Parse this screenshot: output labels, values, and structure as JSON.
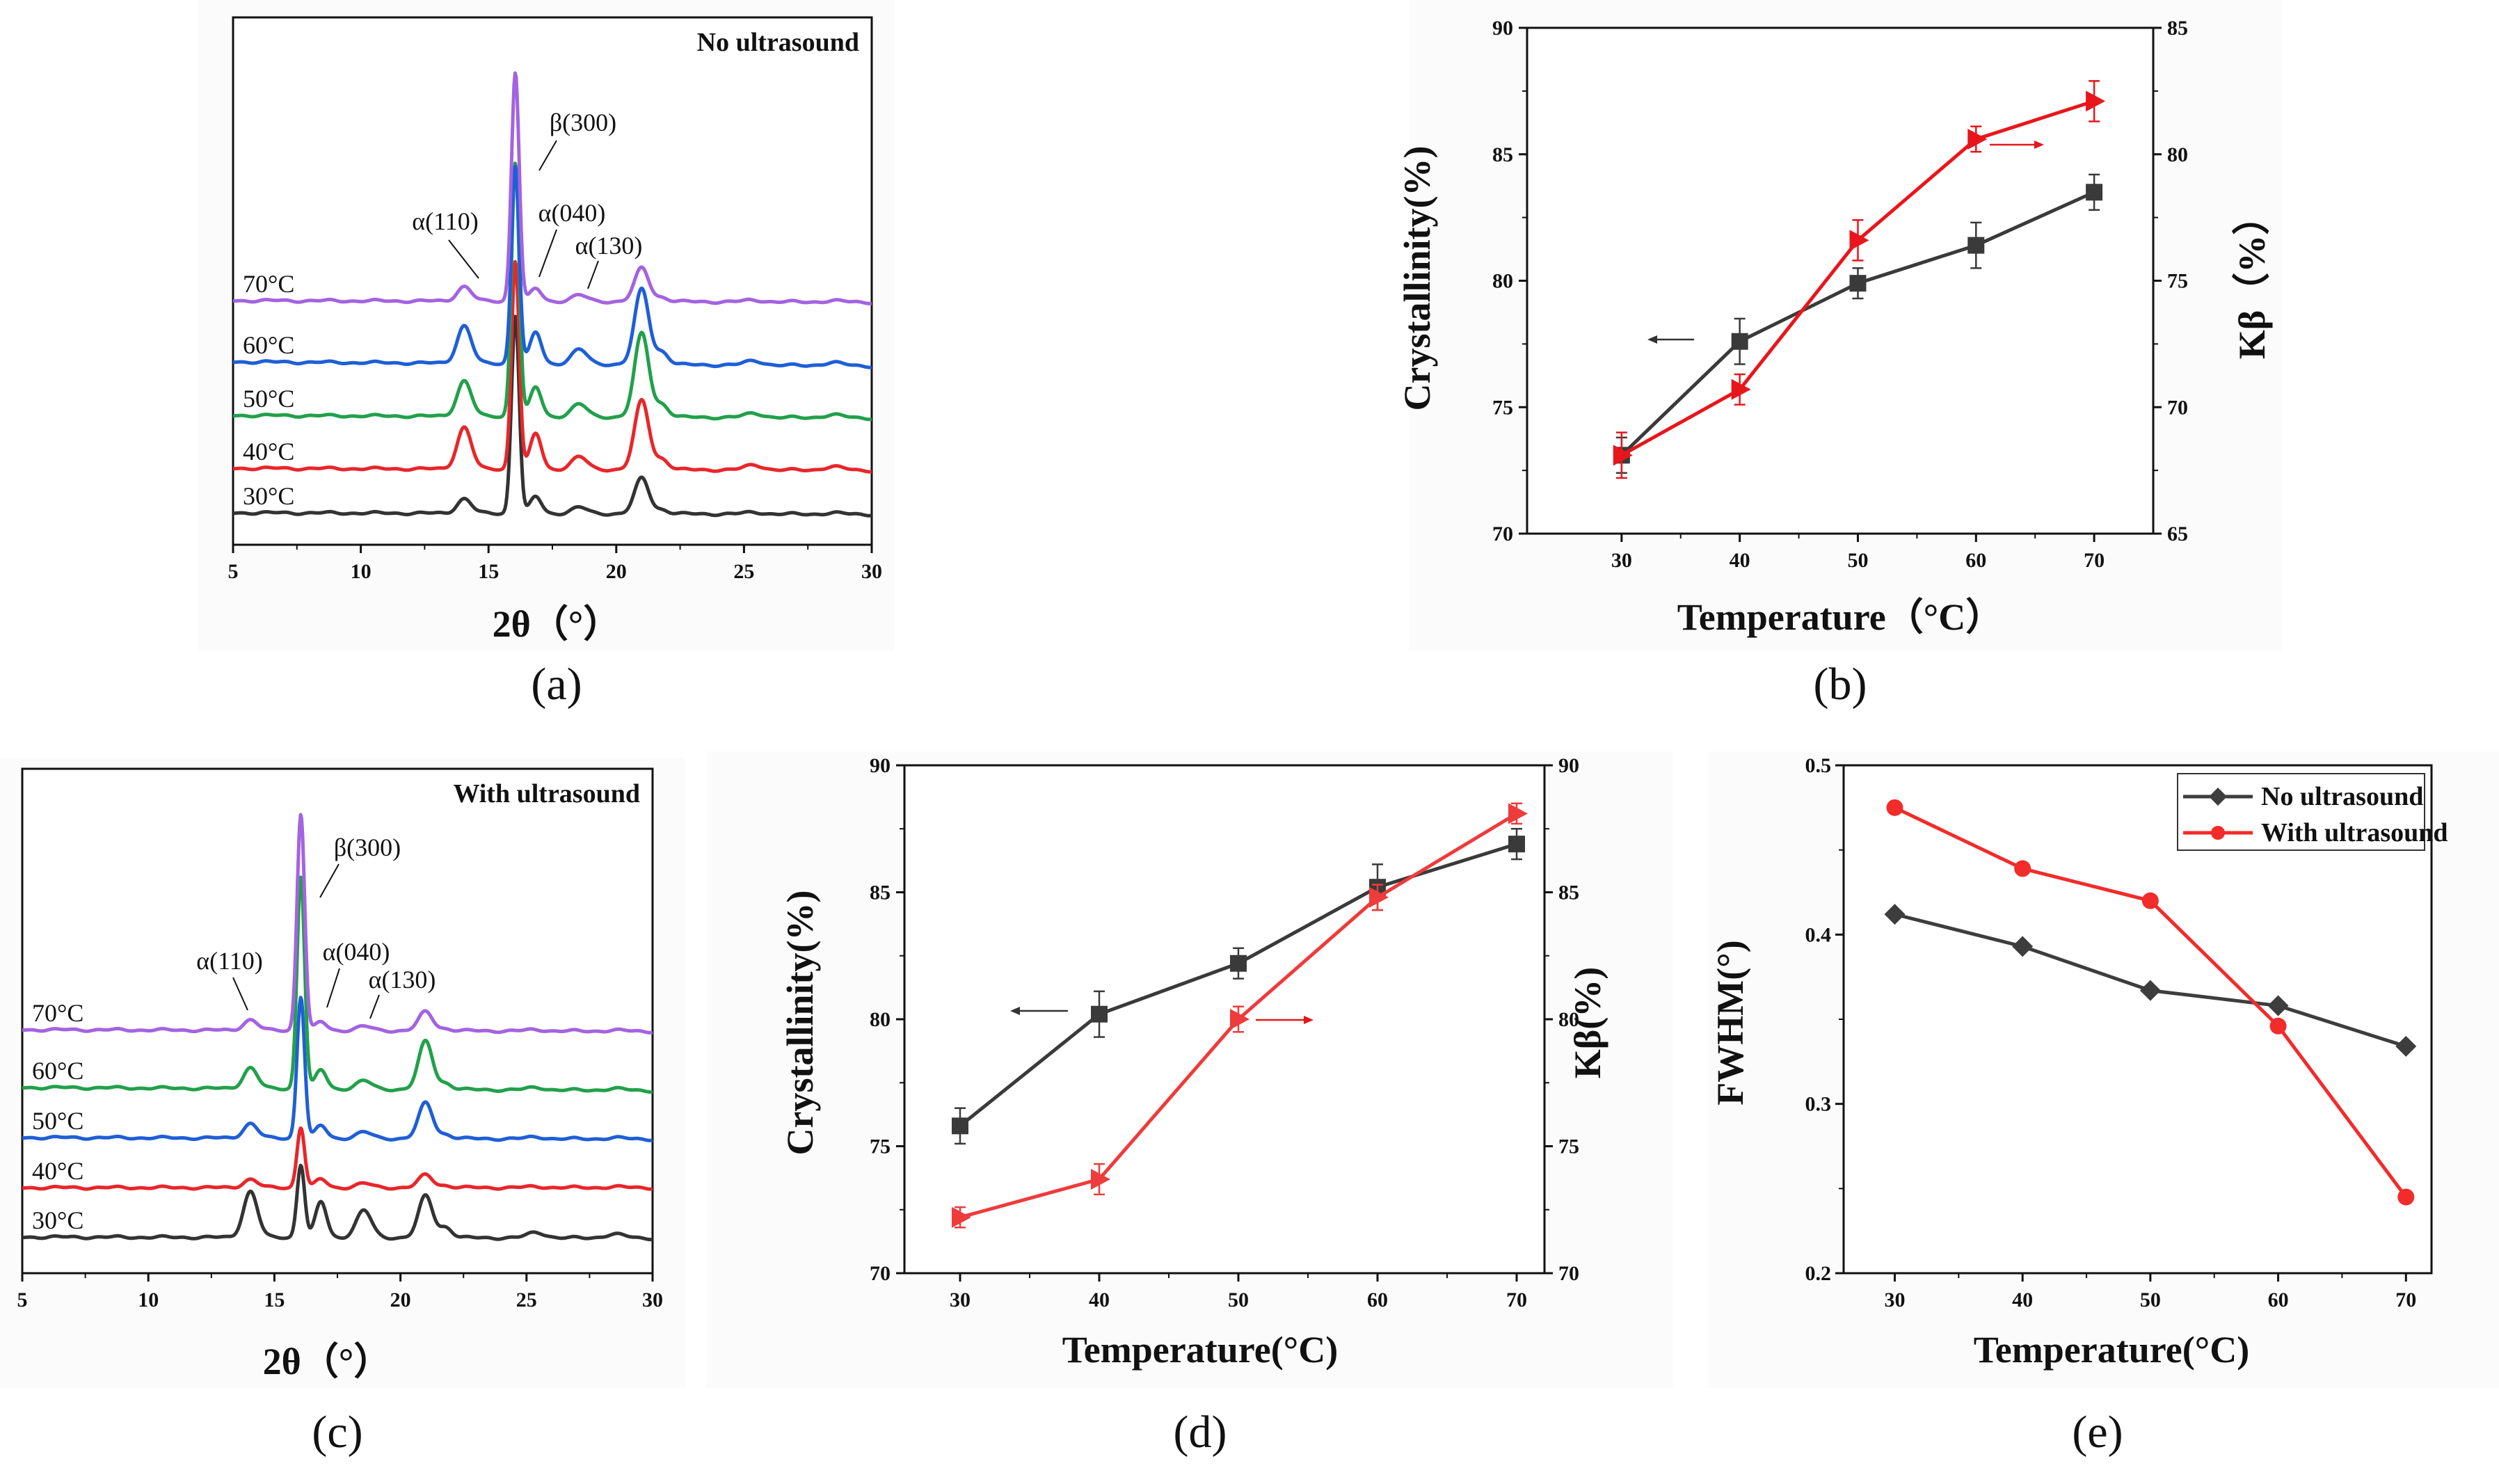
{
  "chart_data": [
    {
      "panel": "(a)",
      "type": "line",
      "title": "No ultrasound",
      "xlabel": "2θ（°）",
      "ylabel": "",
      "xlim": [
        5,
        30
      ],
      "xticks": [
        "5",
        "10",
        "15",
        "20",
        "25",
        "30"
      ],
      "series": [
        {
          "name": "30°C",
          "color": "#333333"
        },
        {
          "name": "40°C",
          "color": "#e8262a"
        },
        {
          "name": "50°C",
          "color": "#22a04a"
        },
        {
          "name": "60°C",
          "color": "#1f5fd6"
        },
        {
          "name": "70°C",
          "color": "#a463e0"
        }
      ],
      "peaks": [
        {
          "label": "α(110)",
          "pos": 14.1
        },
        {
          "label": "β(300)",
          "pos": 16.1
        },
        {
          "label": "α(040)",
          "pos": 16.9
        },
        {
          "label": "α(130)",
          "pos": 18.6
        }
      ]
    },
    {
      "panel": "(b)",
      "type": "line",
      "xlabel": "Temperature（°C）",
      "ylabel": "Crystallinity(%)",
      "ylabel_right": "Kβ（%）",
      "x": [
        30,
        40,
        50,
        60,
        70
      ],
      "xlim": [
        22,
        75
      ],
      "ylim": [
        70,
        90
      ],
      "ylim_right": [
        65,
        85
      ],
      "xticks": [
        "30",
        "40",
        "50",
        "60",
        "70"
      ],
      "yticks": [
        "70",
        "75",
        "80",
        "85",
        "90"
      ],
      "yticks_right": [
        "65",
        "70",
        "75",
        "80",
        "85"
      ],
      "series": [
        {
          "name": "Crystallinity",
          "axis": "left",
          "color": "#3a3a3a",
          "marker": "square",
          "values": [
            73.1,
            77.6,
            79.9,
            81.4,
            83.5
          ],
          "err": [
            0.7,
            0.9,
            0.6,
            0.9,
            0.7
          ]
        },
        {
          "name": "Kβ",
          "axis": "right",
          "color": "#e8161b",
          "marker": "triangle",
          "values": [
            68.1,
            70.7,
            76.6,
            80.6,
            82.1
          ],
          "err": [
            0.9,
            0.6,
            0.8,
            0.5,
            0.8
          ]
        }
      ]
    },
    {
      "panel": "(c)",
      "type": "line",
      "title": "With ultrasound",
      "xlabel": "2θ（°）",
      "ylabel": "",
      "xlim": [
        5,
        30
      ],
      "xticks": [
        "5",
        "10",
        "15",
        "20",
        "25",
        "30"
      ],
      "series": [
        {
          "name": "30°C",
          "color": "#333333"
        },
        {
          "name": "40°C",
          "color": "#e8262a"
        },
        {
          "name": "50°C",
          "color": "#1f5fd6"
        },
        {
          "name": "60°C",
          "color": "#22a04a"
        },
        {
          "name": "70°C",
          "color": "#a463e0"
        }
      ],
      "peaks": [
        {
          "label": "α(110)",
          "pos": 14.1
        },
        {
          "label": "β(300)",
          "pos": 16.1
        },
        {
          "label": "α(040)",
          "pos": 16.9
        },
        {
          "label": "α(130)",
          "pos": 18.6
        }
      ]
    },
    {
      "panel": "(d)",
      "type": "line",
      "xlabel": "Temperature(°C)",
      "ylabel": "Crystallinity(%)",
      "ylabel_right": "Kβ(%)",
      "x": [
        30,
        40,
        50,
        60,
        70
      ],
      "xlim": [
        26,
        72
      ],
      "ylim": [
        70,
        90
      ],
      "ylim_right": [
        70,
        90
      ],
      "xticks": [
        "30",
        "40",
        "50",
        "60",
        "70"
      ],
      "yticks": [
        "70",
        "75",
        "80",
        "85",
        "90"
      ],
      "yticks_right": [
        "70",
        "75",
        "80",
        "85",
        "90"
      ],
      "series": [
        {
          "name": "Crystallinity",
          "axis": "left",
          "color": "#3a3a3a",
          "marker": "square",
          "values": [
            75.8,
            80.2,
            82.2,
            85.2,
            86.9
          ],
          "err": [
            0.7,
            0.9,
            0.6,
            0.9,
            0.6
          ]
        },
        {
          "name": "Kβ",
          "axis": "right",
          "color": "#ee3b3b",
          "marker": "triangle",
          "values": [
            72.2,
            73.7,
            80.0,
            84.8,
            88.1
          ],
          "err": [
            0.4,
            0.6,
            0.5,
            0.5,
            0.4
          ]
        }
      ]
    },
    {
      "panel": "(e)",
      "type": "line",
      "xlabel": "Temperature(°C)",
      "ylabel": "FWHM(°)",
      "x": [
        30,
        40,
        50,
        60,
        70
      ],
      "xlim": [
        26,
        72
      ],
      "ylim": [
        0.2,
        0.5
      ],
      "xticks": [
        "30",
        "40",
        "50",
        "60",
        "70"
      ],
      "yticks": [
        "0.2",
        "0.3",
        "0.4",
        "0.5"
      ],
      "legend": "top-right",
      "series": [
        {
          "name": "No ultrasound",
          "color": "#3d3d3d",
          "marker": "diamond",
          "values": [
            0.412,
            0.393,
            0.367,
            0.358,
            0.334
          ]
        },
        {
          "name": "With ultrasound",
          "color": "#f22b2b",
          "marker": "circle",
          "values": [
            0.475,
            0.439,
            0.42,
            0.346,
            0.245
          ]
        }
      ]
    }
  ]
}
